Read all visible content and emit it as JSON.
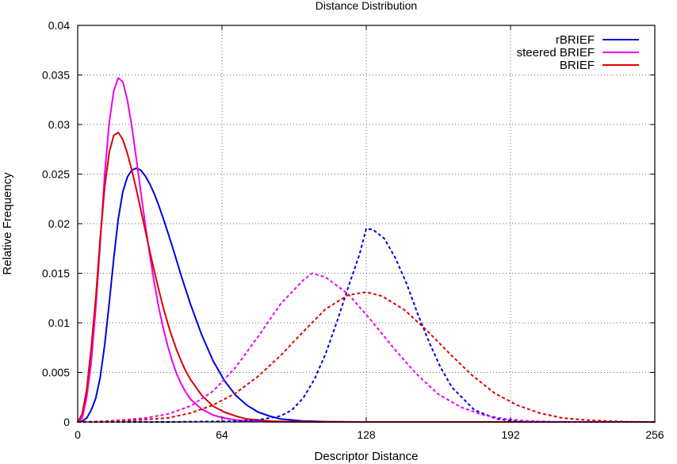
{
  "chart_data": {
    "type": "line",
    "title": "Distance Distribution",
    "xlabel": "Descriptor Distance",
    "ylabel": "Relative Frequency",
    "xlim": [
      0,
      256
    ],
    "ylim": [
      0,
      0.04
    ],
    "xticks": [
      0,
      64,
      128,
      192,
      256
    ],
    "xtick_labels": [
      "0",
      "64",
      "128",
      "192",
      "256"
    ],
    "yticks": [
      0,
      0.005,
      0.01,
      0.015,
      0.02,
      0.025,
      0.03,
      0.035,
      0.04
    ],
    "ytick_labels": [
      "0",
      "0.005",
      "0.01",
      "0.015",
      "0.02",
      "0.025",
      "0.03",
      "0.035",
      "0.04"
    ],
    "grid": true,
    "legend": "top-right",
    "legend_entries": [
      "rBRIEF",
      "steered BRIEF",
      "BRIEF"
    ],
    "series": [
      {
        "name": "rBRIEF",
        "style": "solid",
        "color": "#0000dd",
        "x": [
          0,
          2,
          4,
          6,
          8,
          10,
          12,
          14,
          16,
          18,
          20,
          22,
          24,
          26,
          28,
          30,
          32,
          34,
          36,
          38,
          40,
          42,
          44,
          46,
          48,
          50,
          55,
          60,
          65,
          70,
          75,
          80,
          85,
          90,
          100,
          110,
          120,
          128,
          140,
          160,
          192,
          256
        ],
        "y": [
          0,
          0.0001,
          0.0004,
          0.0012,
          0.0024,
          0.0045,
          0.0078,
          0.012,
          0.0165,
          0.0205,
          0.0232,
          0.0247,
          0.0254,
          0.0256,
          0.0254,
          0.0248,
          0.024,
          0.023,
          0.0218,
          0.0205,
          0.0191,
          0.0177,
          0.0162,
          0.0147,
          0.0133,
          0.0119,
          0.0088,
          0.0062,
          0.0042,
          0.0027,
          0.0017,
          0.001,
          0.0006,
          0.0003,
          0.0001,
          3e-05,
          1e-05,
          0,
          0,
          0,
          0,
          0
        ]
      },
      {
        "name": "steered BRIEF",
        "style": "solid",
        "color": "#ee00ee",
        "x": [
          0,
          2,
          4,
          6,
          8,
          10,
          12,
          14,
          16,
          18,
          20,
          22,
          24,
          26,
          28,
          30,
          32,
          34,
          36,
          38,
          40,
          42,
          44,
          46,
          48,
          50,
          55,
          60,
          65,
          70,
          75,
          80,
          85,
          90,
          100,
          110,
          120,
          128,
          140,
          160,
          192,
          256
        ],
        "y": [
          0,
          0.0004,
          0.0025,
          0.006,
          0.0115,
          0.018,
          0.025,
          0.0302,
          0.0334,
          0.0347,
          0.0343,
          0.0325,
          0.0298,
          0.0266,
          0.0232,
          0.0199,
          0.0168,
          0.014,
          0.0115,
          0.0094,
          0.0076,
          0.0061,
          0.0048,
          0.0038,
          0.003,
          0.0023,
          0.0013,
          0.0007,
          0.0004,
          0.0002,
          0.0001,
          5e-05,
          2e-05,
          1e-05,
          0,
          0,
          0,
          0,
          0,
          0,
          0,
          0
        ]
      },
      {
        "name": "BRIEF",
        "style": "solid",
        "color": "#dd0000",
        "x": [
          0,
          2,
          4,
          6,
          8,
          10,
          12,
          14,
          16,
          18,
          20,
          22,
          24,
          26,
          28,
          30,
          32,
          34,
          36,
          38,
          40,
          42,
          44,
          46,
          48,
          50,
          55,
          60,
          65,
          70,
          75,
          80,
          85,
          90,
          100,
          110,
          120,
          128,
          140,
          160,
          192,
          256
        ],
        "y": [
          0,
          0.0008,
          0.0033,
          0.0075,
          0.0125,
          0.0185,
          0.0237,
          0.0272,
          0.0289,
          0.0292,
          0.0285,
          0.0271,
          0.0254,
          0.0235,
          0.0214,
          0.0193,
          0.0172,
          0.0152,
          0.0133,
          0.0115,
          0.0099,
          0.0085,
          0.0072,
          0.0061,
          0.0051,
          0.0043,
          0.0027,
          0.0016,
          0.001,
          0.0006,
          0.0003,
          0.0002,
          0.0001,
          5e-05,
          2e-05,
          0,
          0,
          0,
          0,
          0,
          0,
          0
        ]
      },
      {
        "style": "dashed",
        "color": "#0000dd",
        "x": [
          0,
          40,
          60,
          70,
          80,
          90,
          95,
          100,
          105,
          110,
          115,
          120,
          125,
          128,
          131,
          136,
          141,
          146,
          151,
          156,
          161,
          166,
          176,
          186,
          196,
          210,
          256
        ],
        "y": [
          0,
          0,
          5e-05,
          0.0001,
          0.0002,
          0.0006,
          0.0012,
          0.0024,
          0.0043,
          0.0069,
          0.0101,
          0.0136,
          0.0169,
          0.0195,
          0.0194,
          0.0185,
          0.0165,
          0.0139,
          0.0108,
          0.008,
          0.0055,
          0.0035,
          0.0012,
          0.0003,
          5e-05,
          0,
          0
        ]
      },
      {
        "style": "dashed",
        "color": "#ee00ee",
        "x": [
          0,
          10,
          20,
          30,
          40,
          50,
          60,
          70,
          80,
          90,
          100,
          104,
          110,
          120,
          130,
          140,
          150,
          160,
          170,
          180,
          190,
          200,
          210,
          220,
          256
        ],
        "y": [
          0,
          5e-05,
          0.0002,
          0.0004,
          0.0008,
          0.0016,
          0.0031,
          0.0055,
          0.0086,
          0.0119,
          0.0143,
          0.015,
          0.0146,
          0.0129,
          0.0103,
          0.0075,
          0.0049,
          0.0028,
          0.0015,
          0.0007,
          0.0003,
          0.0001,
          3e-05,
          0,
          0
        ]
      },
      {
        "style": "dashed",
        "color": "#dd0000",
        "x": [
          0,
          20,
          40,
          50,
          60,
          70,
          80,
          90,
          100,
          110,
          120,
          128,
          135,
          145,
          155,
          165,
          175,
          185,
          195,
          205,
          215,
          225,
          235,
          245,
          256
        ],
        "y": [
          0,
          0.0001,
          0.0004,
          0.0009,
          0.0017,
          0.0029,
          0.0046,
          0.0067,
          0.0091,
          0.0114,
          0.0128,
          0.0131,
          0.0127,
          0.0113,
          0.0092,
          0.0069,
          0.0047,
          0.0029,
          0.0017,
          0.0009,
          0.0004,
          0.0002,
          0.0001,
          2e-05,
          0
        ]
      }
    ]
  }
}
